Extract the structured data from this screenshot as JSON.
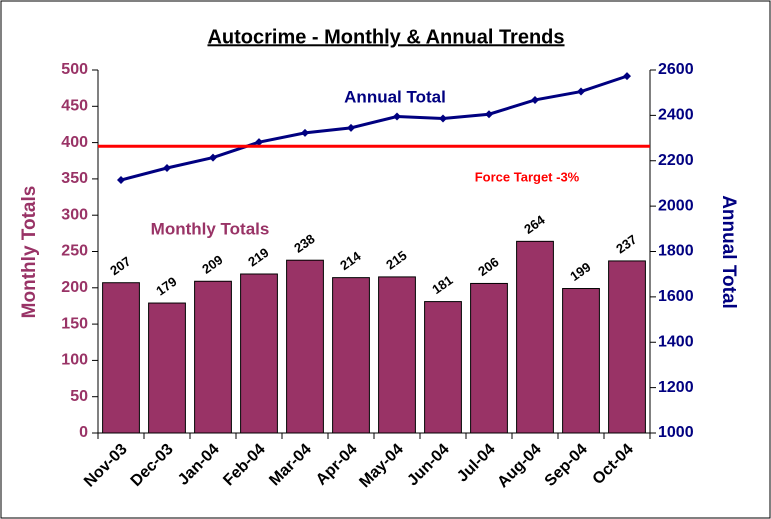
{
  "chart_data": {
    "type": "bar",
    "title": "Autocrime - Monthly & Annual Trends",
    "categories": [
      "Nov-03",
      "Dec-03",
      "Jan-04",
      "Feb-04",
      "Mar-04",
      "Apr-04",
      "May-04",
      "Jun-04",
      "Jul-04",
      "Aug-04",
      "Sep-04",
      "Oct-04"
    ],
    "series": [
      {
        "name": "Monthly Totals",
        "type": "bar",
        "axis": "y",
        "color": "#993366",
        "values": [
          207,
          179,
          209,
          219,
          238,
          214,
          215,
          181,
          206,
          264,
          199,
          237
        ]
      },
      {
        "name": "Annual Total",
        "type": "line",
        "axis": "y2",
        "color": "#000080",
        "values": [
          2115,
          2168,
          2214,
          2282,
          2323,
          2345,
          2395,
          2386,
          2405,
          2468,
          2505,
          2573
        ]
      }
    ],
    "target": {
      "label": "Force Target -3%",
      "value": 395,
      "color": "#ff0000"
    },
    "y_label": "Monthly Totals",
    "y2_label": "Annual Total",
    "ylim": [
      0,
      500
    ],
    "yticks": [
      0,
      50,
      100,
      150,
      200,
      250,
      300,
      350,
      400,
      450,
      500
    ],
    "y2lim": [
      1000,
      2600
    ],
    "y2ticks": [
      1000,
      1200,
      1400,
      1600,
      1800,
      2000,
      2200,
      2400,
      2600
    ],
    "grid": false
  }
}
